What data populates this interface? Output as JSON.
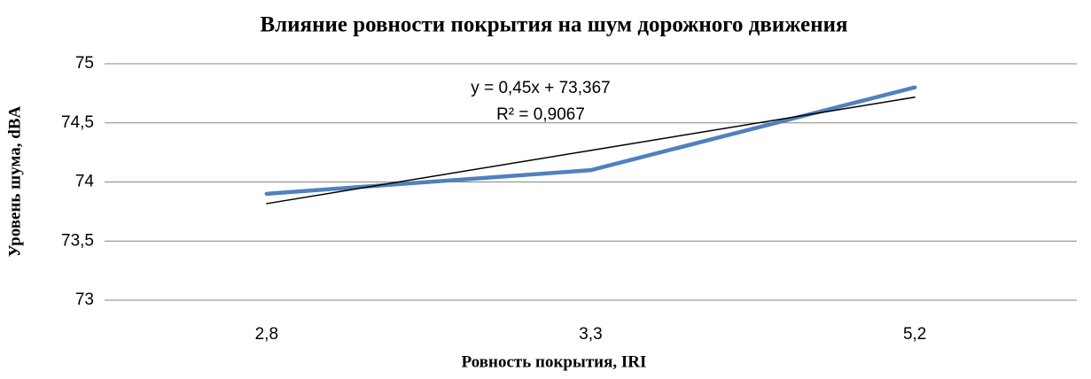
{
  "chart_data": {
    "type": "line",
    "title": "Влияние ровности покрытия на шум дорожного движения",
    "xlabel": "Ровность покрытия, IRI",
    "ylabel": "Уровень шума, dBA",
    "categories": [
      "2,8",
      "3,3",
      "5,2"
    ],
    "series": [
      {
        "color": "#4f81bd",
        "values": [
          73.9,
          74.1,
          74.8
        ]
      }
    ],
    "trendline": {
      "color": "#000000",
      "values": [
        73.817,
        74.267,
        74.717
      ]
    },
    "annotations": [
      "y = 0,45x + 73,367",
      "R² = 0,9067"
    ],
    "ylim": [
      73,
      75
    ],
    "yticks": [
      73,
      {
        "value": 73.5,
        "label": "73,5"
      },
      74,
      {
        "value": 74.5,
        "label": "74,5"
      },
      75
    ],
    "grid": true
  }
}
